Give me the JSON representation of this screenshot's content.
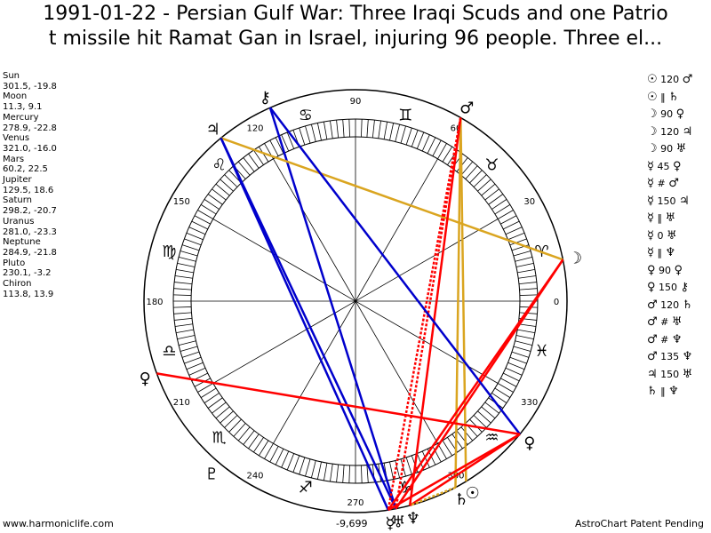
{
  "header": {
    "title_line1": "1991-01-22 - Persian Gulf War: Three Iraqi Scuds and one Patrio",
    "title_line2": "t missile hit Ramat Gan in Israel, injuring 96 people. Three el..."
  },
  "footer": {
    "left": "www.harmoniclife.com",
    "right": "AstroChart Patent Pending",
    "center": "-9,699"
  },
  "colors": {
    "trine": "#0000cc",
    "square": "#ff0000",
    "opposition": "#ff0000",
    "sextile": "#0000cc",
    "conjunction": "#daa520",
    "minor": "#daa520"
  },
  "planets": [
    {
      "name": "Sun",
      "coords": "301.5, -19.8",
      "glyph": "☉"
    },
    {
      "name": "Moon",
      "coords": "11.3, 9.1",
      "glyph": "☽"
    },
    {
      "name": "Mercury",
      "coords": "278.9, -22.8",
      "glyph": "☿"
    },
    {
      "name": "Venus",
      "coords": "321.0, -16.0",
      "glyph": "♀"
    },
    {
      "name": "Mars",
      "coords": "60.2, 22.5",
      "glyph": "♂"
    },
    {
      "name": "Jupiter",
      "coords": "129.5, 18.6",
      "glyph": "♃"
    },
    {
      "name": "Saturn",
      "coords": "298.2, -20.7",
      "glyph": "♄"
    },
    {
      "name": "Uranus",
      "coords": "281.0, -23.3",
      "glyph": "♅"
    },
    {
      "name": "Neptune",
      "coords": "284.9, -21.8",
      "glyph": "♆"
    },
    {
      "name": "Pluto",
      "coords": "230.1, -3.2",
      "glyph": "♇"
    },
    {
      "name": "Chiron",
      "coords": "113.8, 13.9",
      "glyph": "⚷"
    }
  ],
  "aspects": [
    {
      "p1": "☉",
      "angle": "120",
      "p2": "♂"
    },
    {
      "p1": "☉",
      "angle": "‖",
      "p2": "♄"
    },
    {
      "p1": "☽",
      "angle": "90",
      "p2": "♀"
    },
    {
      "p1": "☽",
      "angle": "120",
      "p2": "♃"
    },
    {
      "p1": "☽",
      "angle": "90",
      "p2": "♅"
    },
    {
      "p1": "☿",
      "angle": "45",
      "p2": "♀"
    },
    {
      "p1": "☿",
      "angle": "#",
      "p2": "♂"
    },
    {
      "p1": "☿",
      "angle": "150",
      "p2": "♃"
    },
    {
      "p1": "☿",
      "angle": "‖",
      "p2": "♅"
    },
    {
      "p1": "☿",
      "angle": "0",
      "p2": "♅"
    },
    {
      "p1": "☿",
      "angle": "‖",
      "p2": "♆"
    },
    {
      "p1": "♀",
      "angle": "90",
      "p2": "♀"
    },
    {
      "p1": "♀",
      "angle": "150",
      "p2": "⚷"
    },
    {
      "p1": "♂",
      "angle": "120",
      "p2": "♄"
    },
    {
      "p1": "♂",
      "angle": "#",
      "p2": "♅"
    },
    {
      "p1": "♂",
      "angle": "#",
      "p2": "♆"
    },
    {
      "p1": "♂",
      "angle": "135",
      "p2": "♆"
    },
    {
      "p1": "♃",
      "angle": "150",
      "p2": "♅"
    },
    {
      "p1": "♄",
      "angle": "‖",
      "p2": "♆"
    }
  ],
  "chart_data": {
    "type": "scatter",
    "title": "1991-01-22 - Persian Gulf War: Three Iraqi Scuds and one Patriot missile hit Ramat Gan in Israel, injuring 96 people. Three el...",
    "xlabel": "",
    "ylabel": "",
    "ring_labels": [
      {
        "text": "0",
        "angle": 0
      },
      {
        "text": "30",
        "angle": 30
      },
      {
        "text": "60",
        "angle": 60
      },
      {
        "text": "90",
        "angle": 90
      },
      {
        "text": "120",
        "angle": 120
      },
      {
        "text": "150",
        "angle": 150
      },
      {
        "text": "180",
        "angle": 180
      },
      {
        "text": "210",
        "angle": 210
      },
      {
        "text": "240",
        "angle": 240
      },
      {
        "text": "270",
        "angle": 270
      },
      {
        "text": "300",
        "angle": 300
      },
      {
        "text": "330",
        "angle": 330
      }
    ],
    "signs": [
      {
        "glyph": "♈",
        "angle": 15
      },
      {
        "glyph": "♉",
        "angle": 45
      },
      {
        "glyph": "♊",
        "angle": 75
      },
      {
        "glyph": "♋",
        "angle": 105
      },
      {
        "glyph": "♌",
        "angle": 135
      },
      {
        "glyph": "♍",
        "angle": 165
      },
      {
        "glyph": "♎",
        "angle": 195
      },
      {
        "glyph": "♏",
        "angle": 225
      },
      {
        "glyph": "♐",
        "angle": 255
      },
      {
        "glyph": "♑",
        "angle": 285
      },
      {
        "glyph": "♒",
        "angle": 315
      },
      {
        "glyph": "♓",
        "angle": 345
      }
    ],
    "points": [
      {
        "name": "Sun",
        "x": 301.5,
        "y": -19.8,
        "glyph": "☉"
      },
      {
        "name": "Moon",
        "x": 11.3,
        "y": 9.1,
        "glyph": "☽"
      },
      {
        "name": "Mercury",
        "x": 278.9,
        "y": -22.8,
        "glyph": "☿"
      },
      {
        "name": "Venus",
        "x": 321.0,
        "y": -16.0,
        "glyph": "♀"
      },
      {
        "name": "Mars",
        "x": 60.2,
        "y": 22.5,
        "glyph": "♂"
      },
      {
        "name": "Jupiter",
        "x": 129.5,
        "y": 18.6,
        "glyph": "♃"
      },
      {
        "name": "Saturn",
        "x": 298.2,
        "y": -20.7,
        "glyph": "♄"
      },
      {
        "name": "Uranus",
        "x": 281.0,
        "y": -23.3,
        "glyph": "♅"
      },
      {
        "name": "Neptune",
        "x": 284.9,
        "y": -21.8,
        "glyph": "♆"
      },
      {
        "name": "Pluto",
        "x": 230.1,
        "y": -3.2,
        "glyph": "♇"
      },
      {
        "name": "Chiron",
        "x": 113.8,
        "y": 13.9,
        "glyph": "⚷"
      },
      {
        "name": "Venus-2",
        "x": 200.0,
        "y": 0,
        "glyph": "♀"
      }
    ],
    "aspect_lines": [
      {
        "from": "Chiron",
        "to": "Uranus",
        "color": "#0000cc",
        "style": "solid"
      },
      {
        "from": "Jupiter",
        "to": "Mercury",
        "color": "#0000cc",
        "style": "solid"
      },
      {
        "from": "Jupiter",
        "to": "Moon",
        "color": "#daa520",
        "style": "solid"
      },
      {
        "from": "Jupiter",
        "to": "Uranus",
        "color": "#0000cc",
        "style": "solid"
      },
      {
        "from": "Mars",
        "to": "Saturn",
        "color": "#daa520",
        "style": "solid"
      },
      {
        "from": "Mars",
        "to": "Sun",
        "color": "#daa520",
        "style": "solid"
      },
      {
        "from": "Mars",
        "to": "Mercury",
        "color": "#ff0000",
        "style": "dotted"
      },
      {
        "from": "Mars",
        "to": "Uranus",
        "color": "#ff0000",
        "style": "dotted"
      },
      {
        "from": "Mars",
        "to": "Neptune",
        "color": "#ff0000",
        "style": "solid"
      },
      {
        "from": "Moon",
        "to": "Uranus",
        "color": "#ff0000",
        "style": "solid"
      },
      {
        "from": "Moon",
        "to": "Mercury",
        "color": "#ff0000",
        "style": "solid"
      },
      {
        "from": "Venus",
        "to": "Mercury",
        "color": "#ff0000",
        "style": "solid"
      },
      {
        "from": "Venus",
        "to": "Chiron",
        "color": "#0000cc",
        "style": "solid"
      },
      {
        "from": "Venus",
        "to": "Venus-2",
        "color": "#ff0000",
        "style": "solid"
      },
      {
        "from": "Venus",
        "to": "Neptune",
        "color": "#ff0000",
        "style": "solid"
      },
      {
        "from": "Saturn",
        "to": "Neptune",
        "color": "#daa520",
        "style": "dotted"
      }
    ]
  }
}
